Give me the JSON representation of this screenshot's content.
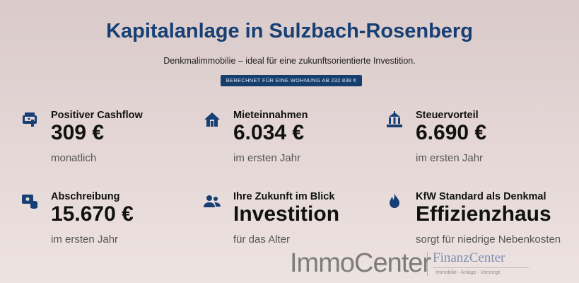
{
  "header": {
    "title": "Kapitalanlage in Sulzbach-Rosenberg",
    "subtitle": "Denkmalimmobilie – ideal für eine zukunftsorientierte Investition.",
    "badge": "BERECHNET FÜR EINE WOHNUNG AB 232.838 €"
  },
  "cards": [
    {
      "icon": "cashflow-icon",
      "title": "Positiver Cashflow",
      "value": "309 €",
      "sub": "monatlich"
    },
    {
      "icon": "house-icon",
      "title": "Mieteinnahmen",
      "value": "6.034 €",
      "sub": "im ersten Jahr"
    },
    {
      "icon": "bank-icon",
      "title": "Steuervorteil",
      "value": "6.690 €",
      "sub": "im ersten Jahr"
    },
    {
      "icon": "depreciation-icon",
      "title": "Abschreibung",
      "value": "15.670 €",
      "sub": "im ersten Jahr"
    },
    {
      "icon": "users-icon",
      "title": "Ihre Zukunft im Blick",
      "value": "Investition",
      "sub": "für das Alter"
    },
    {
      "icon": "flame-icon",
      "title": "KfW Standard als Denkmal",
      "value": "Effizienzhaus",
      "sub": "sorgt für niedrige Nebenkosten"
    }
  ],
  "watermark": {
    "left": "ImmoCenter",
    "right": "FinanzCenter",
    "tagline": "Immobilie · Anlage · Vorsorge"
  },
  "colors": {
    "accent": "#173f73"
  }
}
